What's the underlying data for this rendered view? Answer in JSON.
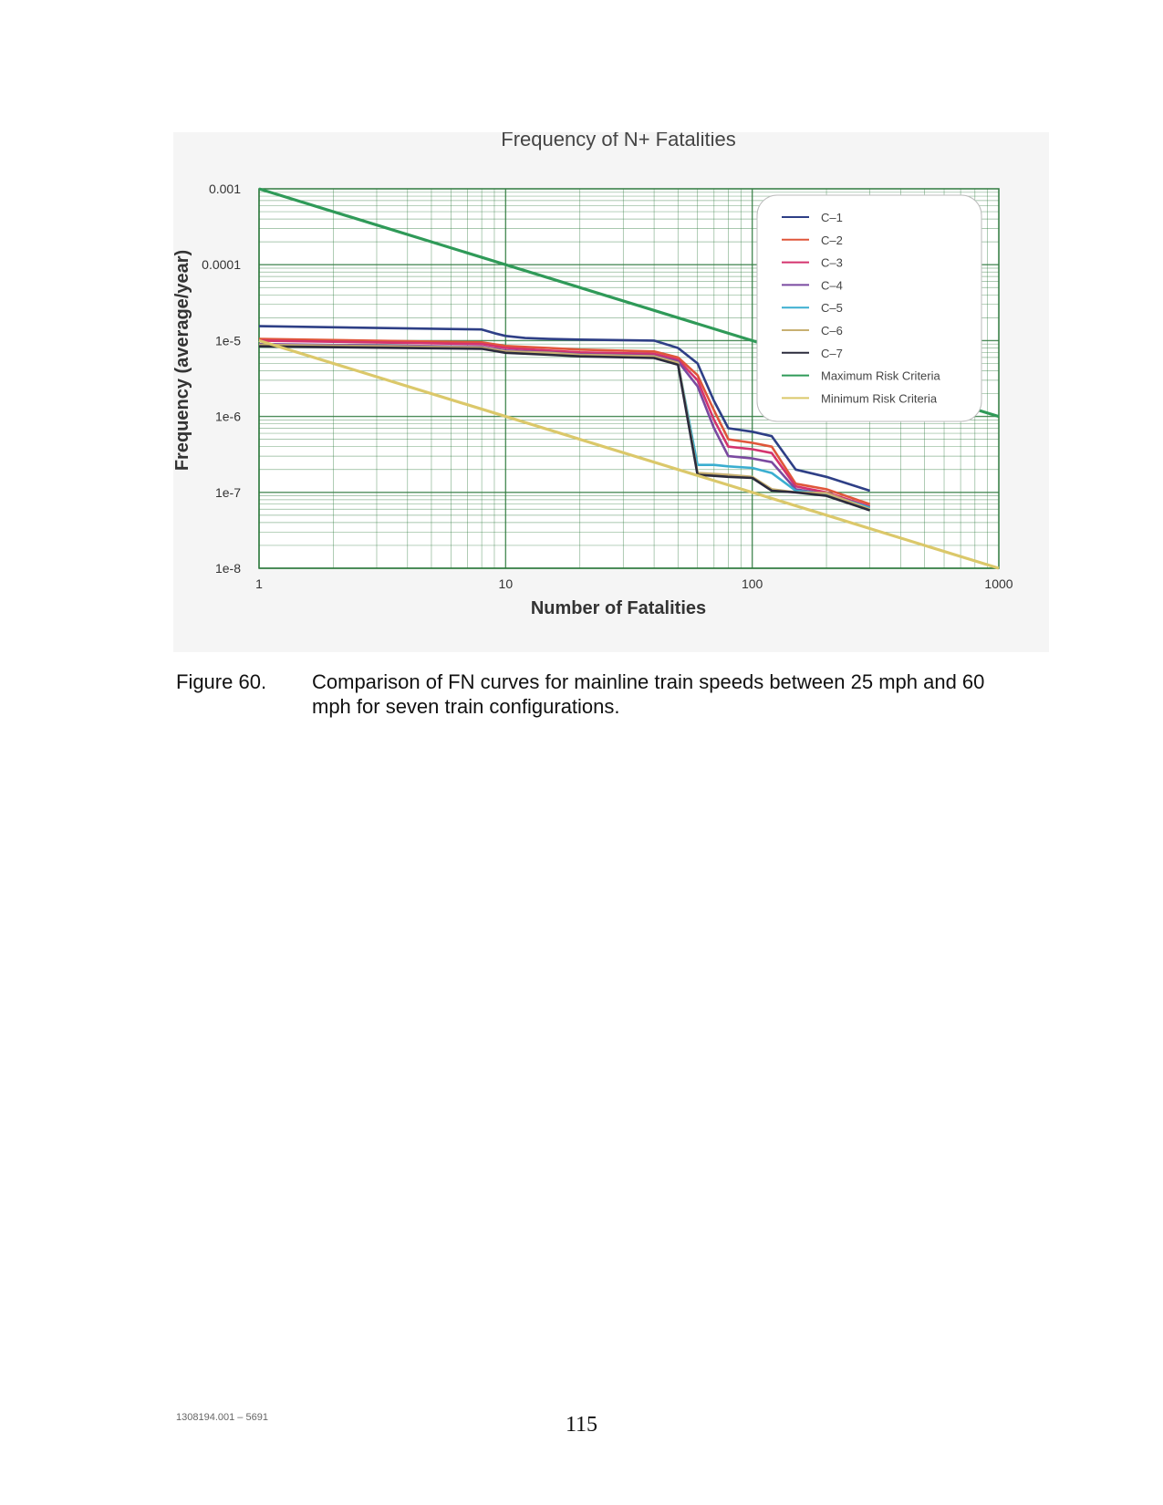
{
  "document": {
    "figure_label": "Figure 60.",
    "caption": "Comparison of FN curves for mainline train speeds between 25 mph and 60 mph for seven train configurations.",
    "doc_id": "1308194.001 – 5691",
    "page_number": "115"
  },
  "chart_data": {
    "type": "line",
    "title": "Frequency of N+ Fatalities",
    "xlabel": "Number of Fatalities",
    "ylabel": "Frequency (average/year)",
    "x_scale": "log",
    "y_scale": "log",
    "xlim": [
      1,
      1000
    ],
    "ylim": [
      1e-08,
      0.001
    ],
    "x_ticks": [
      {
        "v": 1,
        "label": "1"
      },
      {
        "v": 10,
        "label": "10"
      },
      {
        "v": 100,
        "label": "100"
      },
      {
        "v": 1000,
        "label": "1000"
      }
    ],
    "y_ticks": [
      {
        "v": 0.001,
        "label": "0.001"
      },
      {
        "v": 0.0001,
        "label": "0.0001"
      },
      {
        "v": 1e-05,
        "label": "1e-5"
      },
      {
        "v": 1e-06,
        "label": "1e-6"
      },
      {
        "v": 1e-07,
        "label": "1e-7"
      },
      {
        "v": 1e-08,
        "label": "1e-8"
      }
    ],
    "grid": true,
    "legend_position": "top-right",
    "series": [
      {
        "name": "C–1",
        "color": "#2e3f86",
        "x": [
          1,
          8,
          9,
          10,
          12,
          15,
          20,
          40,
          50,
          60,
          70,
          80,
          100,
          120,
          150,
          200,
          300
        ],
        "y": [
          1.55e-05,
          1.4e-05,
          1.25e-05,
          1.15e-05,
          1.08e-05,
          1.05e-05,
          1.03e-05,
          1e-05,
          8e-06,
          5e-06,
          1.6e-06,
          7e-07,
          6.3e-07,
          5.5e-07,
          2e-07,
          1.6e-07,
          1.05e-07
        ]
      },
      {
        "name": "C–2",
        "color": "#e0563a",
        "x": [
          1,
          8,
          10,
          15,
          20,
          40,
          50,
          60,
          70,
          80,
          100,
          120,
          150,
          200,
          300
        ],
        "y": [
          1.05e-05,
          9.5e-06,
          8.5e-06,
          8e-06,
          7.6e-06,
          7.2e-06,
          6e-06,
          3.5e-06,
          1.2e-06,
          5e-07,
          4.5e-07,
          4e-07,
          1.3e-07,
          1.1e-07,
          7e-08
        ]
      },
      {
        "name": "C–3",
        "color": "#d4336e",
        "x": [
          1,
          8,
          10,
          15,
          20,
          40,
          50,
          60,
          70,
          80,
          100,
          120,
          150,
          200,
          300
        ],
        "y": [
          1e-05,
          9e-06,
          8e-06,
          7.4e-06,
          7e-06,
          6.7e-06,
          5.6e-06,
          3e-06,
          9e-07,
          4e-07,
          3.7e-07,
          3.3e-07,
          1.2e-07,
          1e-07,
          6.5e-08
        ]
      },
      {
        "name": "C–4",
        "color": "#7a4aa0",
        "x": [
          1,
          8,
          10,
          15,
          20,
          40,
          50,
          60,
          70,
          80,
          100,
          120,
          150,
          200,
          300
        ],
        "y": [
          9e-06,
          8.3e-06,
          7.4e-06,
          7e-06,
          6.6e-06,
          6.3e-06,
          5.3e-06,
          2.5e-06,
          7e-07,
          3e-07,
          2.8e-07,
          2.5e-07,
          1.1e-07,
          9.5e-08,
          6.3e-08
        ]
      },
      {
        "name": "C–5",
        "color": "#3aaed0",
        "x": [
          1,
          8,
          10,
          15,
          20,
          40,
          50,
          60,
          70,
          80,
          100,
          120,
          150,
          200,
          300
        ],
        "y": [
          8.6e-06,
          8e-06,
          7e-06,
          6.6e-06,
          6.3e-06,
          6e-06,
          5e-06,
          2.3e-07,
          2.3e-07,
          2.2e-07,
          2.1e-07,
          1.8e-07,
          1.05e-07,
          9.5e-08,
          6.3e-08
        ]
      },
      {
        "name": "C–6",
        "color": "#c8b072",
        "x": [
          1,
          8,
          10,
          15,
          20,
          40,
          50,
          60,
          70,
          80,
          100,
          120,
          150,
          200,
          300
        ],
        "y": [
          8.8e-06,
          8.1e-06,
          7.2e-06,
          6.9e-06,
          6.5e-06,
          6.2e-06,
          5.1e-06,
          1.8e-07,
          1.75e-07,
          1.7e-07,
          1.6e-07,
          1.1e-07,
          1e-07,
          9.8e-08,
          6e-08
        ]
      },
      {
        "name": "C–7",
        "color": "#2b2b3c",
        "x": [
          1,
          8,
          10,
          15,
          20,
          40,
          50,
          60,
          70,
          80,
          100,
          120,
          150,
          200,
          300
        ],
        "y": [
          8.4e-06,
          7.8e-06,
          6.9e-06,
          6.5e-06,
          6.2e-06,
          5.9e-06,
          4.8e-06,
          1.7e-07,
          1.65e-07,
          1.6e-07,
          1.55e-07,
          1.05e-07,
          1e-07,
          9e-08,
          5.8e-08
        ]
      },
      {
        "name": "Maximum Risk Criteria",
        "color": "#2f9a58",
        "x": [
          1,
          1000
        ],
        "y": [
          0.001,
          1e-06
        ]
      },
      {
        "name": "Minimum Risk Criteria",
        "color": "#dbc86a",
        "x": [
          1,
          1000
        ],
        "y": [
          1e-05,
          1e-08
        ]
      }
    ]
  }
}
